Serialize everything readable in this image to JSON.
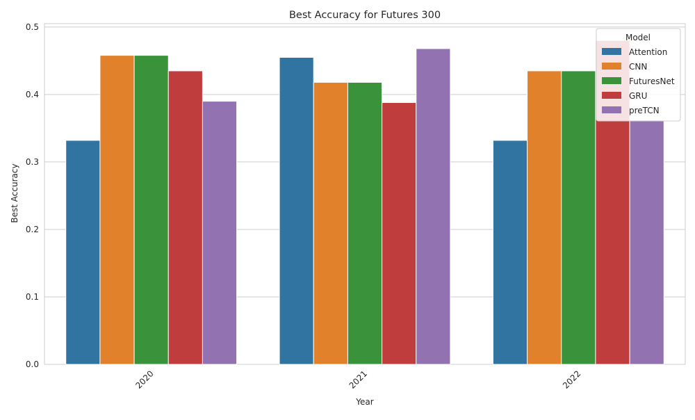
{
  "chart_data": {
    "type": "bar",
    "title": "Best Accuracy for Futures 300",
    "xlabel": "Year",
    "ylabel": "Best Accuracy",
    "categories": [
      "2020",
      "2021",
      "2022"
    ],
    "ylim": [
      0,
      0.505
    ],
    "yticks": [
      "0.0",
      "0.1",
      "0.2",
      "0.3",
      "0.4",
      "0.5"
    ],
    "grid": true,
    "legend": {
      "title": "Model",
      "placement": "top-right"
    },
    "series": [
      {
        "name": "Attention",
        "color": "#3274a1",
        "values": [
          0.332,
          0.455,
          0.332
        ]
      },
      {
        "name": "CNN",
        "color": "#e1812c",
        "values": [
          0.458,
          0.418,
          0.435
        ]
      },
      {
        "name": "FuturesNet",
        "color": "#3a923a",
        "values": [
          0.458,
          0.418,
          0.435
        ]
      },
      {
        "name": "GRU",
        "color": "#c03d3e",
        "values": [
          0.435,
          0.388,
          0.48
        ]
      },
      {
        "name": "preTCN",
        "color": "#9372b2",
        "values": [
          0.39,
          0.468,
          0.362
        ]
      }
    ]
  }
}
